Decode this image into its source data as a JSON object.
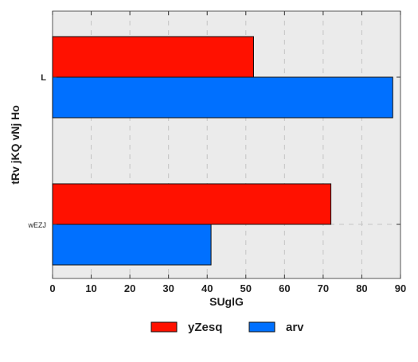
{
  "chart_data": {
    "type": "bar",
    "orientation": "horizontal",
    "title": "",
    "xlabel": "SUglG",
    "ylabel": "tRv jKQ vNj Ho",
    "xlim": [
      0,
      90
    ],
    "xticks": [
      0,
      10,
      20,
      30,
      40,
      50,
      60,
      70,
      80,
      90
    ],
    "categories": [
      "L",
      "wEZJ"
    ],
    "series": [
      {
        "name": "yZesq",
        "color": "#ff1100",
        "values": [
          52,
          72
        ]
      },
      {
        "name": "arv",
        "color": "#0070ff",
        "values": [
          88,
          41
        ]
      }
    ],
    "grid": true,
    "legend_position": "bottom-center",
    "background": "#ebebeb"
  }
}
